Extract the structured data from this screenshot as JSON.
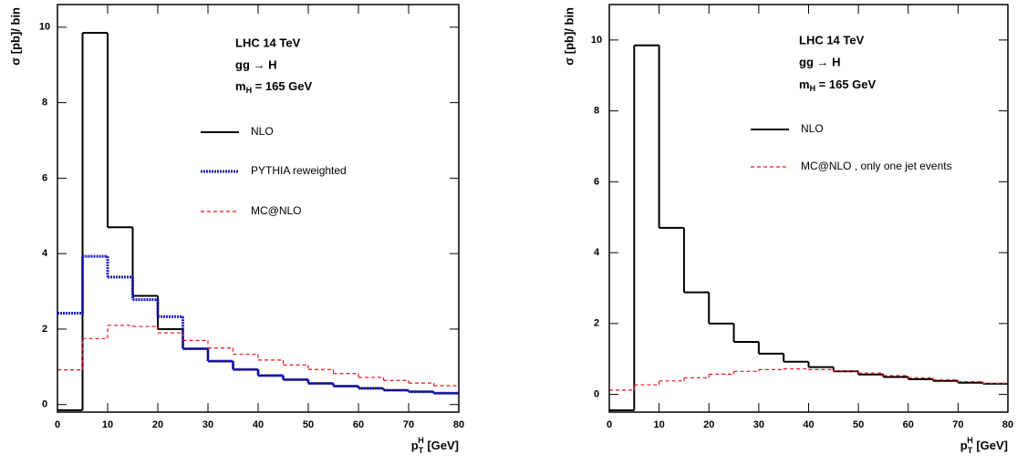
{
  "chart_data": [
    {
      "type": "histogram",
      "annotations": [
        {
          "text": "LHC 14 TeV"
        },
        {
          "text": "gg → H"
        },
        {
          "base": "m",
          "sub": "H",
          "rest": " = 165 GeV"
        }
      ],
      "xlabel": {
        "base": "p",
        "sub": "T",
        "sup": "H",
        "unit": " [GeV]"
      },
      "ylabel": "σ [pb]/ bin",
      "bins": [
        0,
        5,
        10,
        15,
        20,
        25,
        30,
        35,
        40,
        45,
        50,
        55,
        60,
        65,
        70,
        75,
        80
      ],
      "series": [
        {
          "name": "NLO",
          "color": "#000000",
          "linestyle": "solid",
          "values": [
            -0.15,
            9.85,
            4.7,
            2.88,
            2.0,
            1.48,
            1.15,
            0.93,
            0.77,
            0.66,
            0.56,
            0.49,
            0.43,
            0.38,
            0.34,
            0.3
          ]
        },
        {
          "name": "PYTHIA reweighted",
          "color": "#1a1acc",
          "linestyle": "dotted",
          "values": [
            2.42,
            3.93,
            3.38,
            2.78,
            2.33,
            1.48,
            1.15,
            0.93,
            0.77,
            0.66,
            0.56,
            0.49,
            0.43,
            0.38,
            0.34,
            0.3
          ]
        },
        {
          "name": "MC@NLO",
          "color": "#e8141e",
          "linestyle": "dashed",
          "values": [
            0.92,
            1.75,
            2.1,
            2.07,
            1.9,
            1.7,
            1.5,
            1.33,
            1.18,
            1.05,
            0.93,
            0.82,
            0.72,
            0.64,
            0.57,
            0.5
          ]
        }
      ],
      "xlim": [
        0,
        80
      ],
      "xticks": [
        0,
        10,
        20,
        30,
        40,
        50,
        60,
        70,
        80
      ],
      "ylim": [
        -0.2,
        10.6
      ],
      "yticks": [
        0,
        2,
        4,
        6,
        8,
        10
      ]
    },
    {
      "type": "histogram",
      "annotations": [
        {
          "text": "LHC 14 TeV"
        },
        {
          "text": "gg → H"
        },
        {
          "base": "m",
          "sub": "H",
          "rest": " = 165 GeV"
        }
      ],
      "xlabel": {
        "base": "p",
        "sub": "T",
        "sup": "H",
        "unit": " [GeV]"
      },
      "ylabel": "σ [pb]/ bin",
      "bins": [
        0,
        5,
        10,
        15,
        20,
        25,
        30,
        35,
        40,
        45,
        50,
        55,
        60,
        65,
        70,
        75,
        80
      ],
      "series": [
        {
          "name": "NLO",
          "color": "#000000",
          "linestyle": "solid",
          "values": [
            -0.45,
            9.85,
            4.7,
            2.88,
            2.0,
            1.48,
            1.15,
            0.92,
            0.77,
            0.65,
            0.56,
            0.49,
            0.43,
            0.38,
            0.33,
            0.3
          ]
        },
        {
          "name": "MC@NLO , only one jet events",
          "color": "#e8141e",
          "linestyle": "dashed",
          "values": [
            0.12,
            0.27,
            0.38,
            0.47,
            0.57,
            0.65,
            0.7,
            0.72,
            0.7,
            0.66,
            0.6,
            0.53,
            0.47,
            0.41,
            0.36,
            0.31
          ]
        }
      ],
      "xlim": [
        0,
        80
      ],
      "xticks": [
        0,
        10,
        20,
        30,
        40,
        50,
        60,
        70,
        80
      ],
      "ylim": [
        -0.5,
        11
      ],
      "yticks": [
        0,
        2,
        4,
        6,
        8,
        10
      ]
    }
  ]
}
